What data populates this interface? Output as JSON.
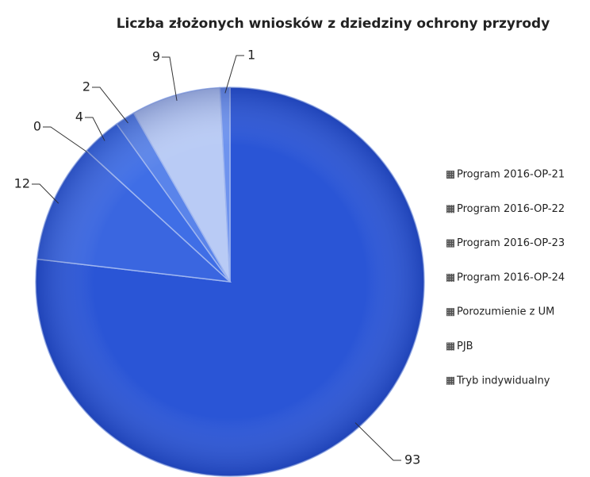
{
  "chart_data": {
    "type": "pie",
    "title": "Liczba złożonych wniosków z dziedziny ochrony przyrody",
    "categories": [
      "Program 2016-OP-21",
      "Program 2016-OP-22",
      "Program 2016-OP-23",
      "Program 2016-OP-24",
      "Porozumienie z UM",
      "PJB",
      "Tryb indywidualny"
    ],
    "values": [
      93,
      12,
      0,
      4,
      2,
      9,
      1
    ],
    "colors": [
      "#2a55d6",
      "#3a66e0",
      "#4a74e4",
      "#3f6ee6",
      "#5a84ea",
      "#b9cbf5",
      "#6e93ee"
    ],
    "legend": "right"
  }
}
